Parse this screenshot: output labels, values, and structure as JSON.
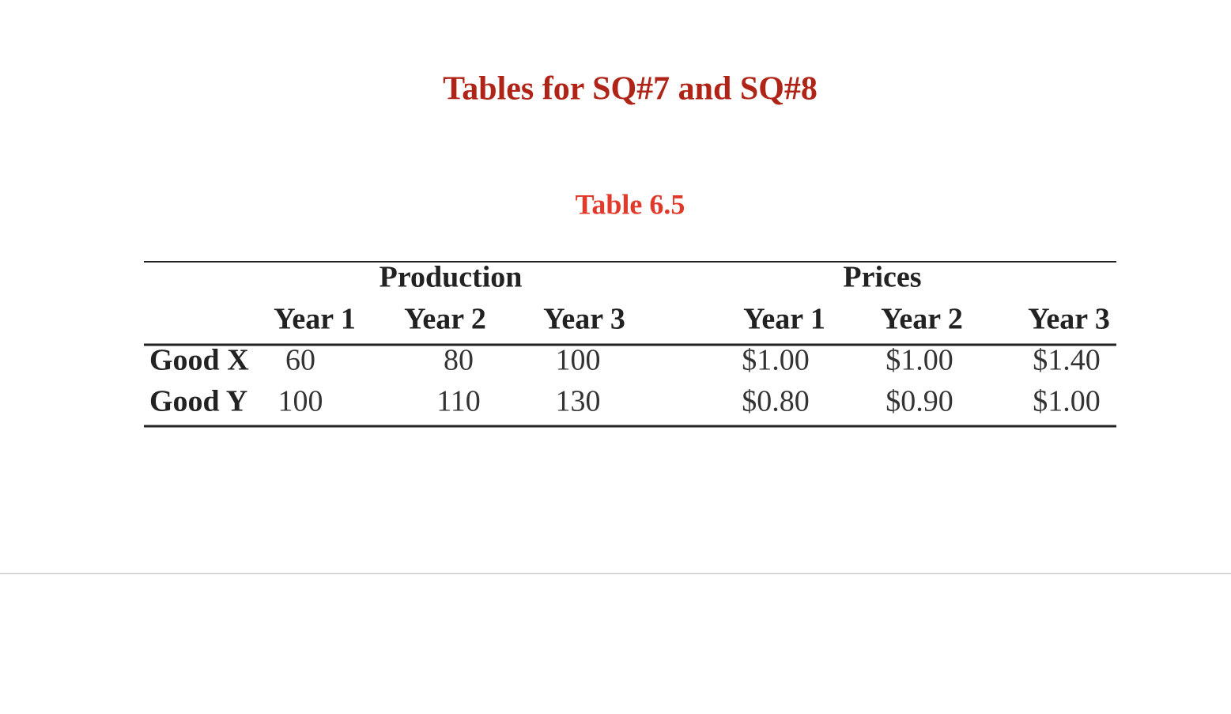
{
  "header": {
    "title": "Tables for SQ#7 and SQ#8",
    "subtitle": "Table 6.5"
  },
  "table": {
    "groups": [
      "Production",
      "Prices"
    ],
    "columns": [
      "Year 1",
      "Year 2",
      "Year 3",
      "Year 1",
      "Year 2",
      "Year 3"
    ],
    "rows": [
      [
        "Good X",
        60,
        80,
        100,
        "$1.00",
        "$1.00",
        "$1.40"
      ],
      [
        "Good Y",
        100,
        110,
        130,
        "$0.80",
        "$0.90",
        "$1.00"
      ]
    ]
  }
}
